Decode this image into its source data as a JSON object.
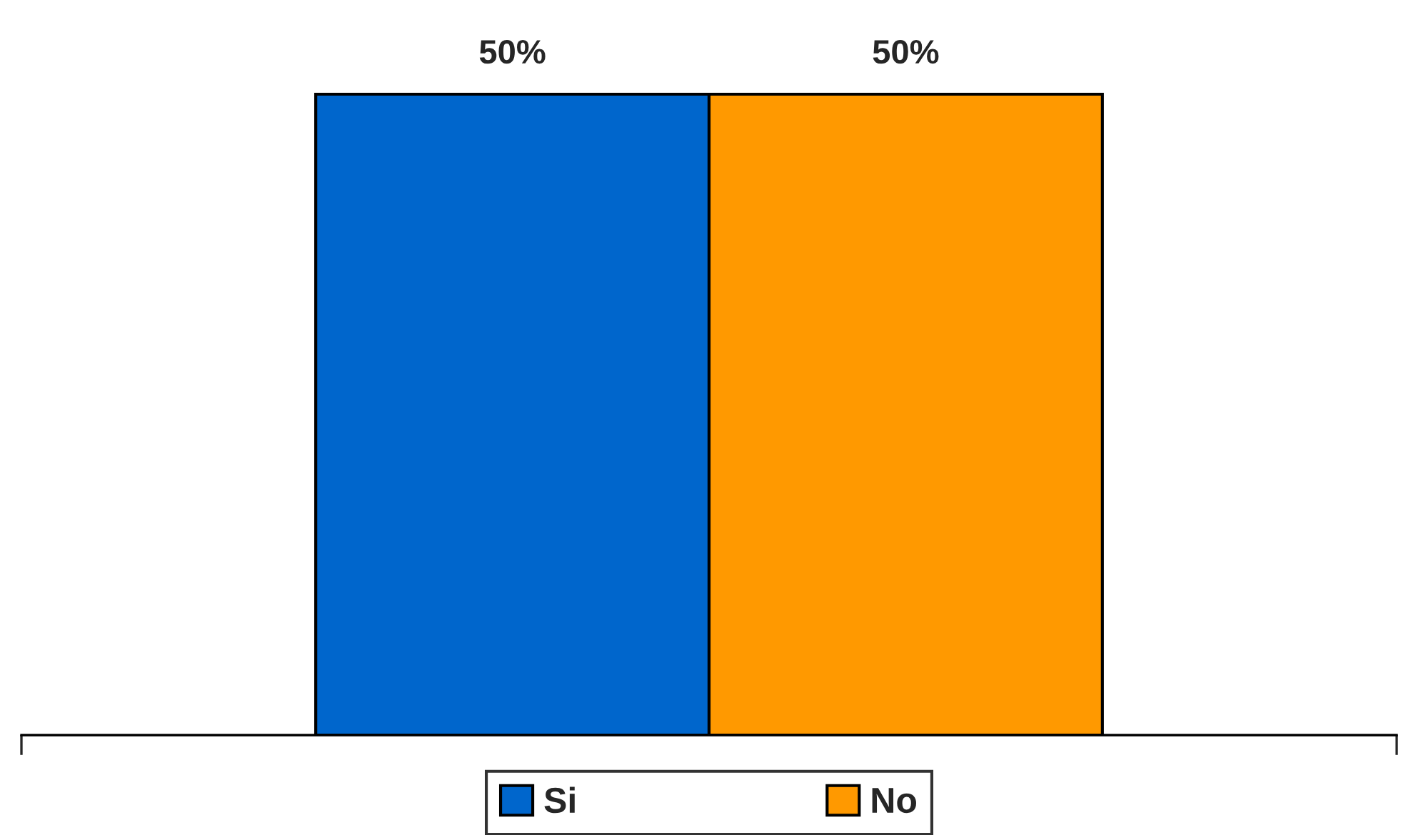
{
  "chart_data": {
    "type": "bar",
    "categories": [
      null
    ],
    "series": [
      {
        "name": "Si",
        "color": "#0066cc",
        "values": [
          50
        ],
        "value_labels": [
          "50%"
        ]
      },
      {
        "name": "No",
        "color": "#ff9900",
        "values": [
          50
        ],
        "value_labels": [
          "50%"
        ]
      }
    ],
    "legend": "bottom"
  }
}
